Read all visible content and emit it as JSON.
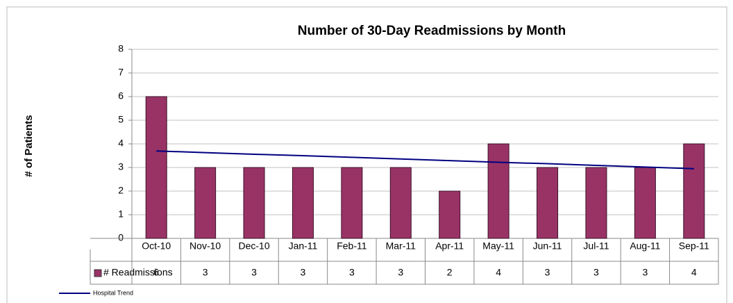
{
  "chart_data": {
    "type": "bar",
    "title": "Number of 30-Day Readmissions by Month",
    "y_label": "# of Patients",
    "categories": [
      "Oct-10",
      "Nov-10",
      "Dec-10",
      "Jan-11",
      "Feb-11",
      "Mar-11",
      "Apr-11",
      "May-11",
      "Jun-11",
      "Jul-11",
      "Aug-11",
      "Sep-11"
    ],
    "series": [
      {
        "name": "# Readmissions",
        "color": "#993366",
        "values": [
          6,
          3,
          3,
          3,
          3,
          3,
          2,
          4,
          3,
          3,
          3,
          4
        ]
      },
      {
        "name": "Hospital Trend",
        "type": "line",
        "color": "#000080",
        "values": [
          3.7,
          3.63,
          3.56,
          3.5,
          3.43,
          3.36,
          3.29,
          3.22,
          3.16,
          3.09,
          3.02,
          2.95
        ]
      }
    ],
    "ylim": [
      0,
      8
    ],
    "yticks": [
      0,
      1,
      2,
      3,
      4,
      5,
      6,
      7,
      8
    ],
    "grid": true,
    "data_table": true,
    "legend": "bottom-left"
  }
}
